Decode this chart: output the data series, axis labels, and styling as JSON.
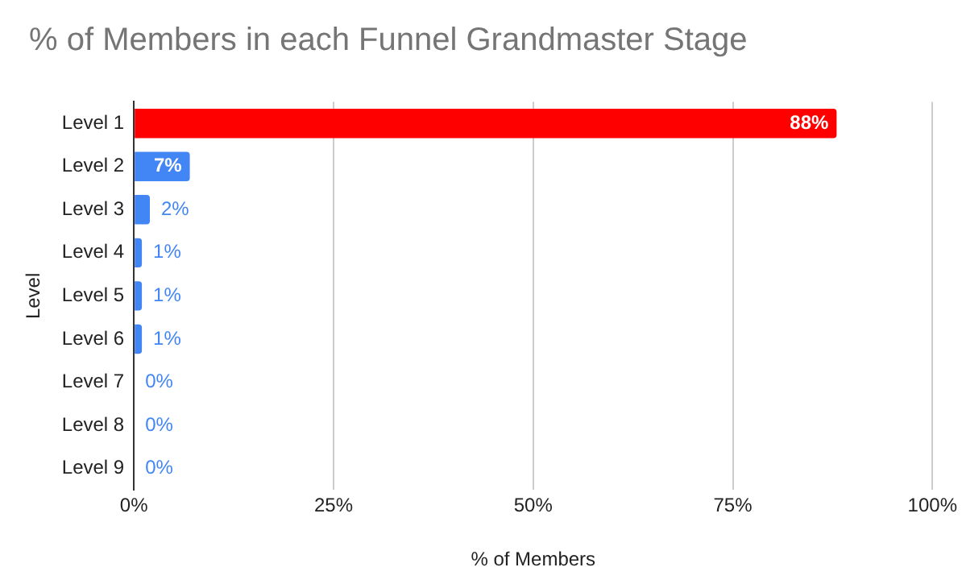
{
  "chart_data": {
    "type": "bar",
    "orientation": "horizontal",
    "title": "% of Members in each Funnel Grandmaster Stage",
    "xlabel": "% of Members",
    "ylabel": "Level",
    "categories": [
      "Level 1",
      "Level 2",
      "Level 3",
      "Level 4",
      "Level 5",
      "Level 6",
      "Level 7",
      "Level 8",
      "Level 9"
    ],
    "values": [
      88,
      7,
      2,
      1,
      1,
      1,
      0,
      0,
      0
    ],
    "colors": [
      "#ff0000",
      "#4285f4",
      "#4285f4",
      "#4285f4",
      "#4285f4",
      "#4285f4",
      "#4285f4",
      "#4285f4",
      "#4285f4"
    ],
    "value_labels": [
      "88%",
      "7%",
      "2%",
      "1%",
      "1%",
      "1%",
      "0%",
      "0%",
      "0%"
    ],
    "xlim": [
      0,
      100
    ],
    "xticks": [
      {
        "value": 0,
        "label": "0%"
      },
      {
        "value": 25,
        "label": "25%"
      },
      {
        "value": 50,
        "label": "50%"
      },
      {
        "value": 75,
        "label": "75%"
      },
      {
        "value": 100,
        "label": "100%"
      }
    ],
    "grid": "x",
    "legend": false
  }
}
